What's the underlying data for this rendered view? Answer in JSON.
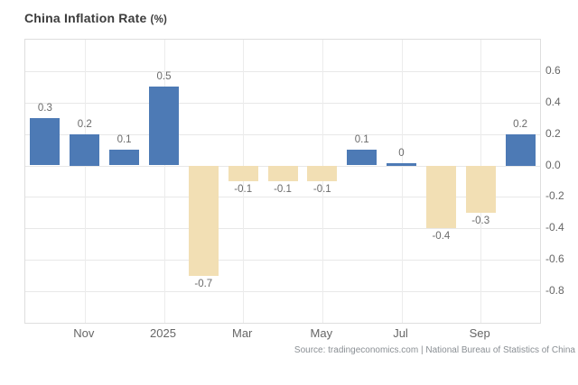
{
  "title": {
    "main": "China Inflation Rate",
    "suffix": "(%)"
  },
  "source": "Source: tradingeconomics.com | National Bureau of Statistics of China",
  "chart_data": {
    "type": "bar",
    "title": "China Inflation Rate (%)",
    "xlabel": "",
    "ylabel": "",
    "values": [
      0.3,
      0.2,
      0.1,
      0.5,
      -0.7,
      -0.1,
      -0.1,
      -0.1,
      0.1,
      0,
      -0.4,
      -0.3,
      0.2
    ],
    "bar_labels": [
      "0.3",
      "0.2",
      "0.1",
      "0.5",
      "-0.7",
      "-0.1",
      "-0.1",
      "-0.1",
      "0.1",
      "0",
      "-0.4",
      "-0.3",
      "0.2"
    ],
    "x_tick_labels": [
      "Nov",
      "2025",
      "Mar",
      "May",
      "Jul",
      "Sep"
    ],
    "x_tick_bar_indices": [
      1,
      3,
      5,
      7,
      9,
      11
    ],
    "y_ticks": [
      0.6,
      0.4,
      0.2,
      0.0,
      -0.2,
      -0.4,
      -0.6,
      -0.8
    ],
    "y_tick_labels": [
      "0.6",
      "0.4",
      "0.2",
      "0.0",
      "-0.2",
      "-0.4",
      "-0.6",
      "-0.8"
    ],
    "ylim": [
      -1.0,
      0.8
    ],
    "grid": true,
    "legend": "none",
    "colors": {
      "positive_bar": "#4d7ab5",
      "negative_bar": "#f2dfb4",
      "gridline": "#e8e8e8",
      "plot_border": "#dedede",
      "label_text": "#6b6b6b",
      "axis_text": "#666666"
    }
  }
}
